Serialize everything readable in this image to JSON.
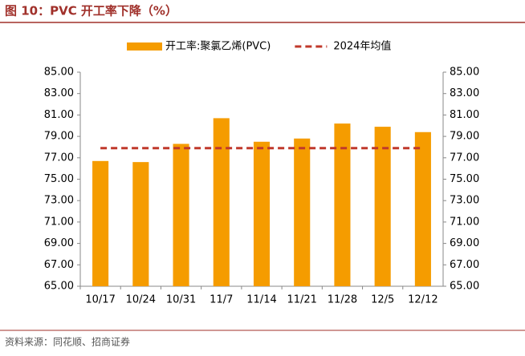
{
  "chart_data": {
    "type": "bar",
    "title": "图 10：PVC 开工率下降（%）",
    "source": "资料来源：同花顺、招商证券",
    "categories": [
      "10/17",
      "10/24",
      "10/31",
      "11/7",
      "11/14",
      "11/21",
      "11/28",
      "12/5",
      "12/12"
    ],
    "series": [
      {
        "name": "开工率:聚氯乙烯(PVC)",
        "color": "#f59c00",
        "values": [
          76.7,
          76.6,
          78.3,
          80.7,
          78.5,
          78.8,
          80.2,
          79.9,
          79.4
        ]
      },
      {
        "name": "2024年均值",
        "color": "#c0392b",
        "line_style": "dashed",
        "values": [
          77.9,
          77.9,
          77.9,
          77.9,
          77.9,
          77.9,
          77.9,
          77.9,
          77.9
        ]
      }
    ],
    "ylim": [
      65,
      85
    ],
    "yticks": [
      {
        "value": 65,
        "label": "65.00"
      },
      {
        "value": 67,
        "label": "67.00"
      },
      {
        "value": 69,
        "label": "69.00"
      },
      {
        "value": 71,
        "label": "71.00"
      },
      {
        "value": 73,
        "label": "73.00"
      },
      {
        "value": 75,
        "label": "75.00"
      },
      {
        "value": 77,
        "label": "77.00"
      },
      {
        "value": 79,
        "label": "79.00"
      },
      {
        "value": 81,
        "label": "81.00"
      },
      {
        "value": 83,
        "label": "83.00"
      },
      {
        "value": 85,
        "label": "85.00"
      }
    ],
    "y2lim": [
      65,
      85
    ],
    "y2ticks": [
      {
        "value": 65,
        "label": "65.00"
      },
      {
        "value": 67,
        "label": "67.00"
      },
      {
        "value": 69,
        "label": "69.00"
      },
      {
        "value": 71,
        "label": "71.00"
      },
      {
        "value": 73,
        "label": "73.00"
      },
      {
        "value": 75,
        "label": "75.00"
      },
      {
        "value": 77,
        "label": "77.00"
      },
      {
        "value": 79,
        "label": "79.00"
      },
      {
        "value": 81,
        "label": "81.00"
      },
      {
        "value": 83,
        "label": "83.00"
      },
      {
        "value": 85,
        "label": "85.00"
      }
    ],
    "grid": false
  }
}
